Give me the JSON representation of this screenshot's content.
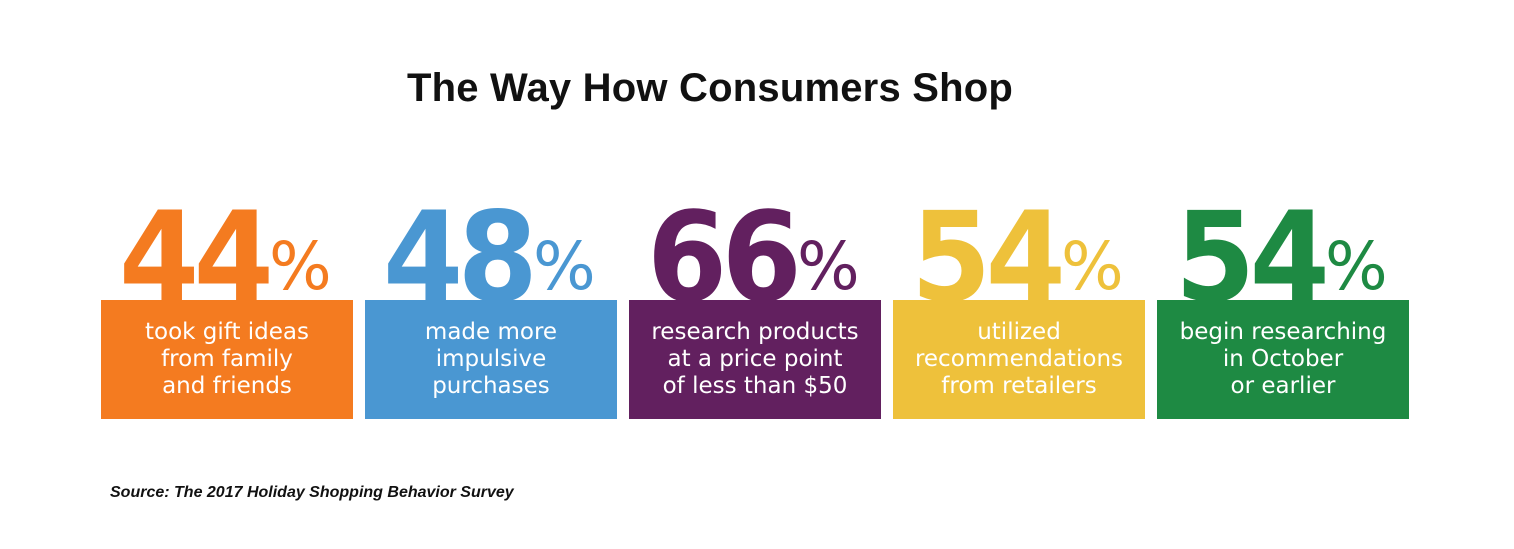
{
  "title": "The Way How Consumers Shop",
  "source": "Source: The 2017 Holiday Shopping Behavior Survey",
  "chart_data": {
    "type": "table",
    "title": "The Way How Consumers Shop",
    "unit": "%",
    "items": [
      {
        "value": 44,
        "label": "took gift ideas\nfrom family\nand friends",
        "color": "#F47B20"
      },
      {
        "value": 48,
        "label": "made more\nimpulsive\npurchases",
        "color": "#4A97D2"
      },
      {
        "value": 66,
        "label": "research products\nat a price point\nof less than $50",
        "color": "#62205F"
      },
      {
        "value": 54,
        "label": "utilized\nrecommendations\nfrom retailers",
        "color": "#EEC13B"
      },
      {
        "value": 54,
        "label": "begin researching\nin October\nor earlier",
        "color": "#1E8A43"
      }
    ]
  }
}
